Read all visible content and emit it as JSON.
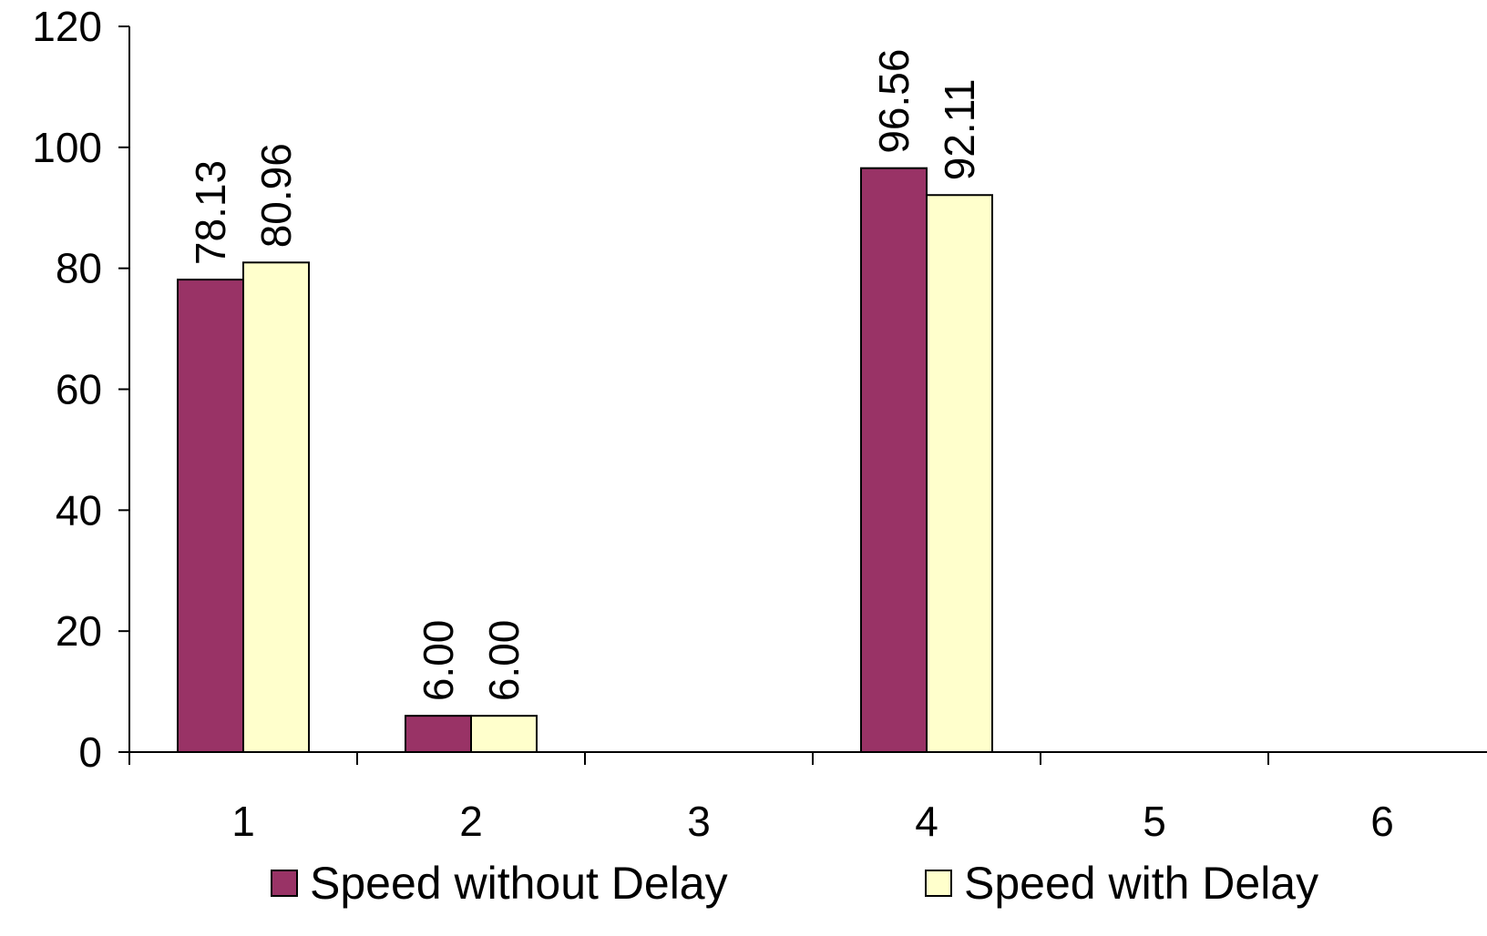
{
  "chart_data": {
    "type": "bar",
    "title": "",
    "xlabel": "",
    "ylabel": "",
    "categories": [
      "1",
      "2",
      "3",
      "4",
      "5",
      "6"
    ],
    "series": [
      {
        "name": "Speed without Delay",
        "color": "#993366",
        "values": [
          78.13,
          6.0,
          null,
          96.56,
          null,
          null
        ],
        "labels": [
          "78.13",
          "6.00",
          "",
          "96.56",
          "",
          ""
        ]
      },
      {
        "name": "Speed with Delay",
        "color": "#FFFFCC",
        "values": [
          80.96,
          6.0,
          null,
          92.11,
          null,
          null
        ],
        "labels": [
          "80.96",
          "6.00",
          "",
          "92.11",
          "",
          ""
        ]
      }
    ],
    "ylim": [
      0,
      120
    ],
    "yticks": [
      "0",
      "20",
      "40",
      "60",
      "80",
      "100",
      "120"
    ],
    "grid": false,
    "legend": "bottom"
  }
}
